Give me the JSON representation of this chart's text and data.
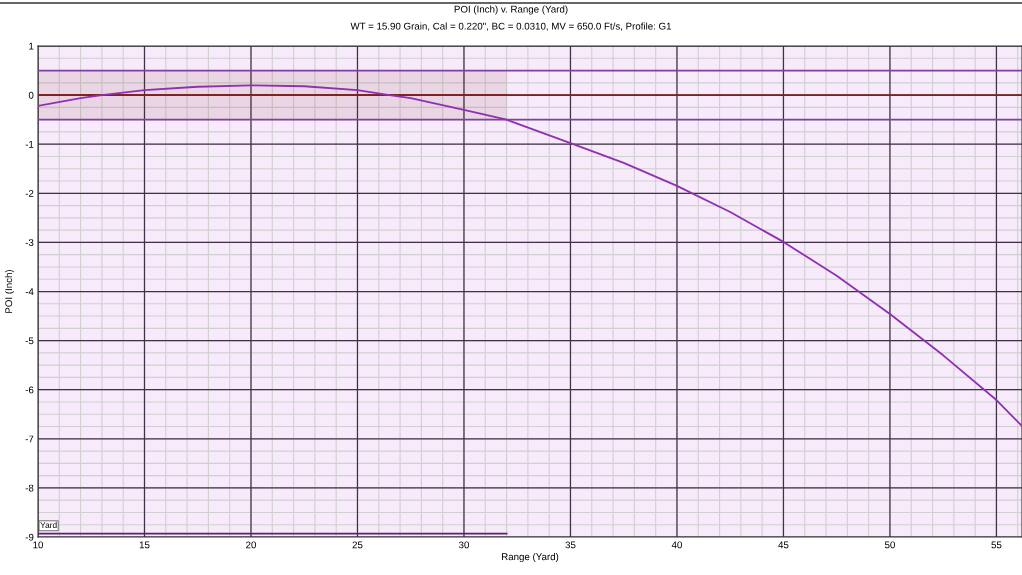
{
  "chart_data": {
    "type": "line",
    "title": "POI (Inch) v. Range (Yard)",
    "subtitle": "WT = 15.90 Grain, Cal = 0.220\", BC = 0.0310, MV = 650.0 Ft/s, Profile: G1",
    "xlabel": "Range (Yard)",
    "ylabel": "POI (Inch)",
    "series": [
      {
        "color": "#802020",
        "x": [
          10,
          32
        ],
        "values": [
          0,
          0
        ],
        "lower": [
          -0.5,
          -0.5
        ],
        "upper": [
          0.5,
          0.5
        ]
      },
      {
        "color": "#9030b0",
        "x": [
          10,
          12,
          13,
          15,
          17.5,
          20,
          22.5,
          25,
          26.5,
          27.5,
          30,
          32,
          35,
          37.5,
          40,
          42.5,
          45,
          47.5,
          50,
          52.5,
          55,
          56.2
        ],
        "values": [
          -0.22,
          -0.06,
          0.0,
          0.1,
          0.17,
          0.2,
          0.18,
          0.1,
          0.0,
          -0.06,
          -0.3,
          -0.5,
          -0.98,
          -1.38,
          -1.85,
          -2.38,
          -2.99,
          -3.68,
          -4.46,
          -5.3,
          -6.21,
          -6.74
        ]
      },
      {
        "name": "Yard",
        "color": "#602070",
        "x": [
          10,
          32
        ],
        "values": [
          -8.93,
          -8.93
        ]
      }
    ],
    "ref_lines": [
      {
        "axis": "y",
        "value": 0.5,
        "color": "#8040a0"
      },
      {
        "axis": "y",
        "value": 0,
        "color": "#802020"
      },
      {
        "axis": "y",
        "value": -0.5,
        "color": "#8040a0"
      }
    ],
    "xlim": [
      10,
      56.2
    ],
    "xticks": [
      10,
      15,
      20,
      25,
      30,
      35,
      40,
      45,
      50,
      55
    ],
    "ylim": [
      -9,
      1
    ],
    "yticks": [
      -9,
      -8,
      -7,
      -6,
      -5,
      -4,
      -3,
      -2,
      -1,
      0,
      1
    ],
    "grid": true
  }
}
